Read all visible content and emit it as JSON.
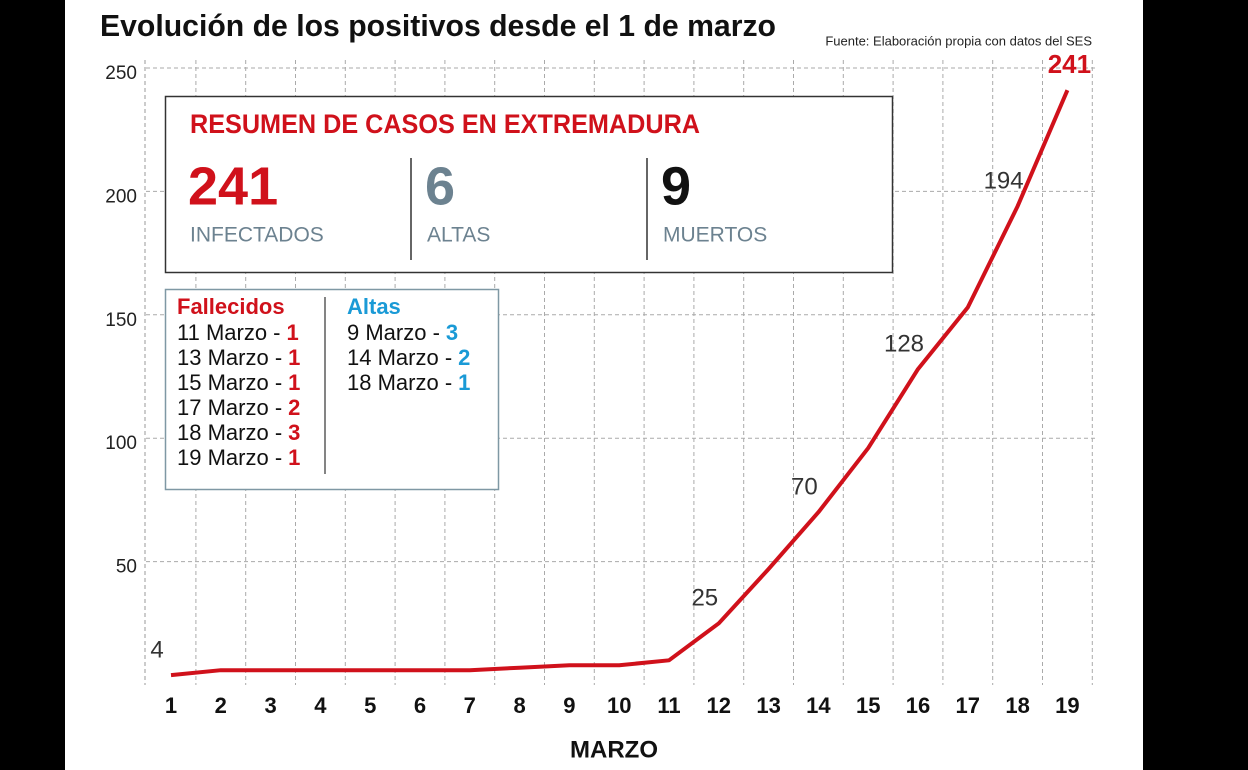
{
  "chart_data": {
    "type": "line",
    "title": "Evolución de los positivos desde el 1 de marzo",
    "source": "Fuente: Elaboración propia con datos del SES",
    "x_label": "MARZO",
    "categories": [
      "1",
      "2",
      "3",
      "4",
      "5",
      "6",
      "7",
      "8",
      "9",
      "10",
      "11",
      "12",
      "13",
      "14",
      "15",
      "16",
      "17",
      "18",
      "19"
    ],
    "values": [
      4,
      6,
      6,
      6,
      6,
      6,
      6,
      7,
      8,
      8,
      10,
      25,
      47,
      70,
      96,
      128,
      153,
      194,
      241
    ],
    "value_labels": [
      "4",
      null,
      null,
      null,
      null,
      null,
      null,
      null,
      null,
      null,
      null,
      "25",
      null,
      "70",
      null,
      "128",
      null,
      "194",
      "241"
    ],
    "color": "#d0111b",
    "ylim": [
      0,
      250
    ],
    "yticks": [
      50,
      100,
      150,
      200,
      250
    ],
    "grid": true
  },
  "summary": {
    "title": "RESUMEN DE CASOS EN EXTREMADURA",
    "stats": [
      {
        "value": "241",
        "label": "INFECTADOS"
      },
      {
        "value": "6",
        "label": "ALTAS"
      },
      {
        "value": "9",
        "label": "MUERTOS"
      }
    ]
  },
  "legend": {
    "fallecidos": {
      "title": "Fallecidos",
      "items": [
        {
          "date": "11 Marzo -",
          "count": "1"
        },
        {
          "date": "13 Marzo -",
          "count": "1"
        },
        {
          "date": "15 Marzo -",
          "count": "1"
        },
        {
          "date": "17 Marzo -",
          "count": "2"
        },
        {
          "date": "18 Marzo -",
          "count": "3"
        },
        {
          "date": "19 Marzo -",
          "count": "1"
        }
      ]
    },
    "altas": {
      "title": "Altas",
      "items": [
        {
          "date": "9 Marzo -",
          "count": "3"
        },
        {
          "date": "14 Marzo -",
          "count": "2"
        },
        {
          "date": "18 Marzo -",
          "count": "1"
        }
      ]
    }
  }
}
